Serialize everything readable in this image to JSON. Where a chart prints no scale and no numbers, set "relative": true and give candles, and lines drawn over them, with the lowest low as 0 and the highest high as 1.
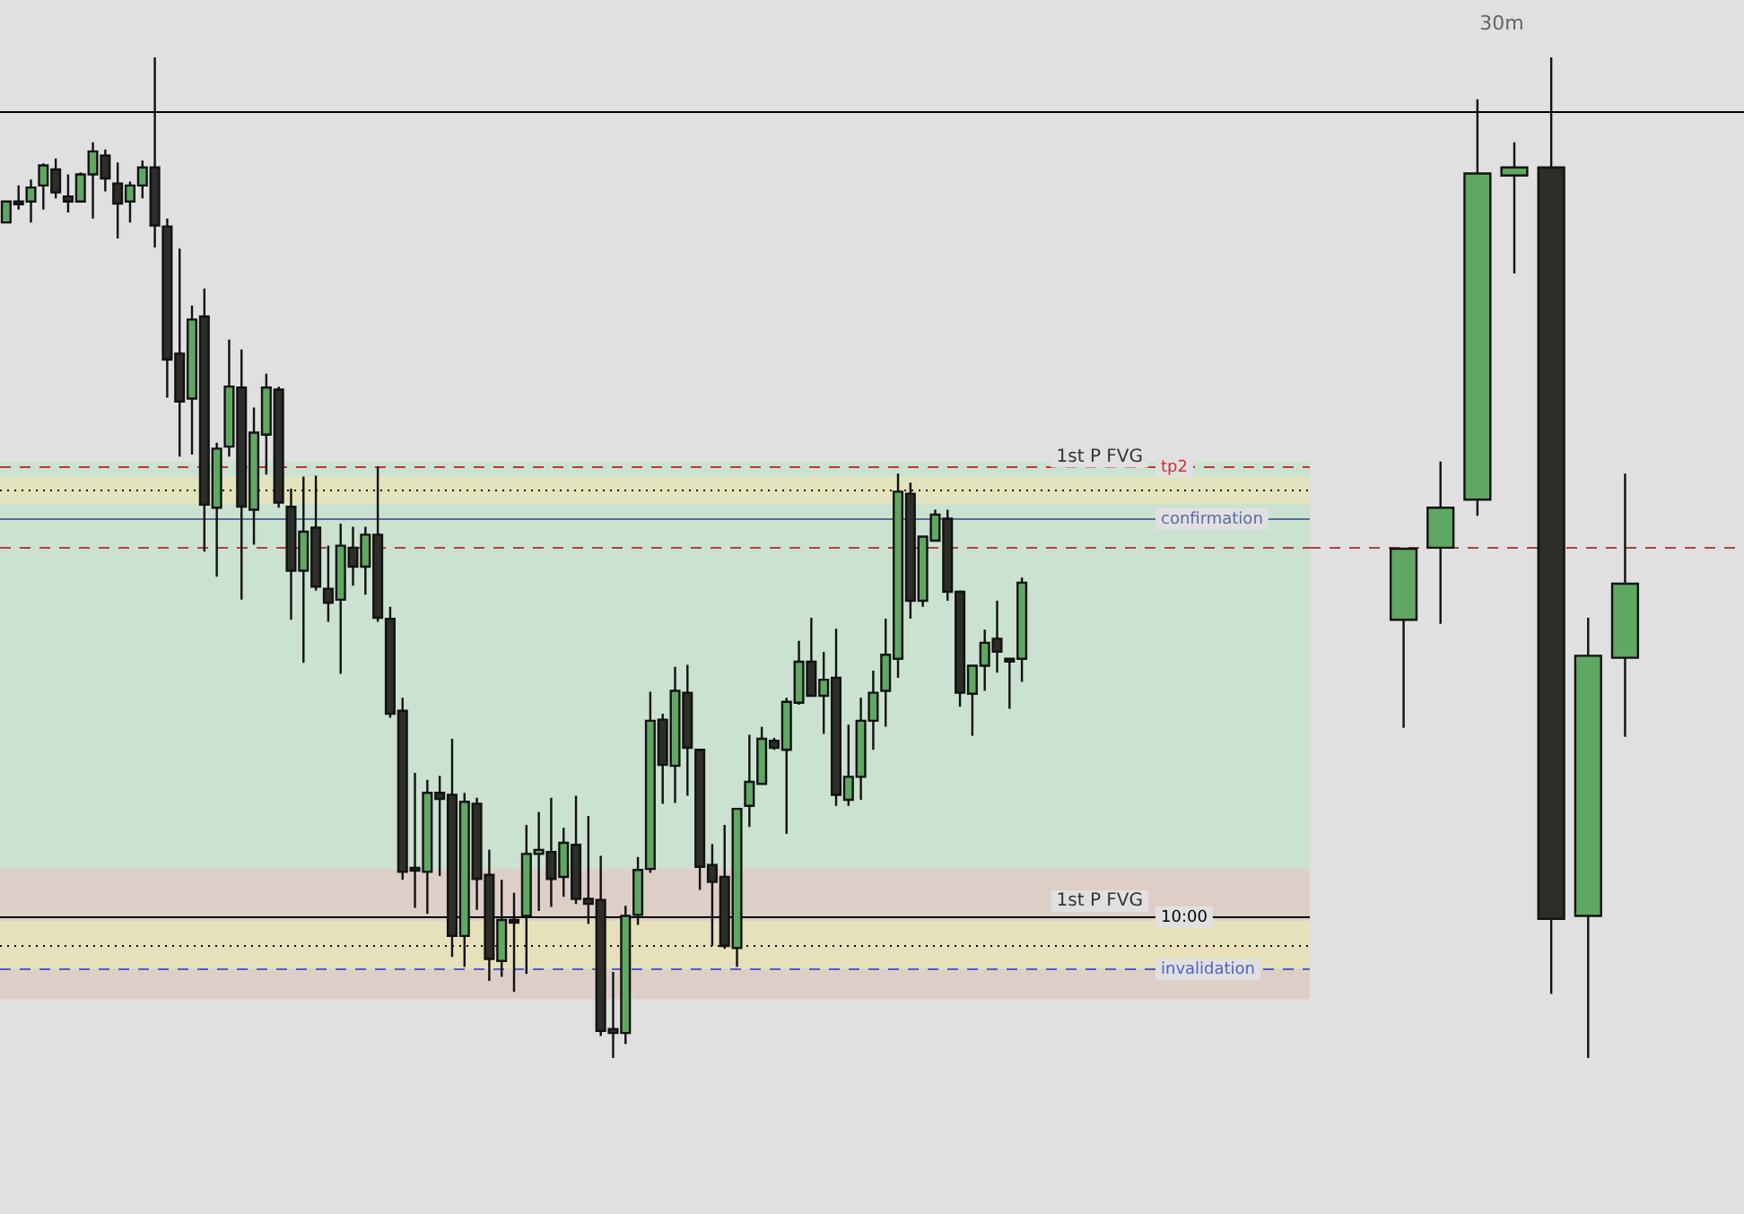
{
  "chart_data": [
    {
      "type": "candlestick",
      "relative": true,
      "categories": [
        null,
        null,
        null,
        null,
        null,
        null,
        null,
        null,
        null,
        null,
        null,
        null,
        null,
        null,
        null,
        null,
        null,
        null,
        null,
        null,
        null,
        null,
        null,
        null,
        null,
        null,
        null,
        null,
        null,
        null,
        null,
        null,
        null,
        null,
        null,
        null,
        null,
        null,
        null,
        null,
        null,
        null,
        null,
        null,
        null,
        null,
        null,
        null,
        null,
        null,
        null,
        null,
        null,
        null,
        null,
        null,
        null,
        null,
        null,
        null,
        null,
        null,
        null,
        null,
        null,
        null,
        null,
        null,
        null,
        null,
        null,
        null,
        null,
        null,
        null,
        null,
        null,
        null,
        null,
        null,
        null,
        null,
        null
      ],
      "ohlc": [
        [
          0.835,
          0.856,
          0.835,
          0.856
        ],
        [
          0.856,
          0.872,
          0.848,
          0.856
        ],
        [
          0.856,
          0.878,
          0.835,
          0.87
        ],
        [
          0.872,
          0.894,
          0.848,
          0.892
        ],
        [
          0.888,
          0.899,
          0.859,
          0.865
        ],
        [
          0.861,
          0.883,
          0.845,
          0.856
        ],
        [
          0.856,
          0.885,
          0.856,
          0.883
        ],
        [
          0.883,
          0.915,
          0.839,
          0.906
        ],
        [
          0.902,
          0.908,
          0.866,
          0.879
        ],
        [
          0.874,
          0.895,
          0.819,
          0.854
        ],
        [
          0.856,
          0.876,
          0.835,
          0.872
        ],
        [
          0.872,
          0.897,
          0.859,
          0.89
        ],
        [
          0.89,
          1,
          0.81,
          0.832
        ],
        [
          0.831,
          0.839,
          0.66,
          0.698
        ],
        [
          0.704,
          0.809,
          0.601,
          0.656
        ],
        [
          0.659,
          0.752,
          0.603,
          0.738
        ],
        [
          0.741,
          0.769,
          0.506,
          0.553
        ],
        [
          0.55,
          0.615,
          0.481,
          0.609
        ],
        [
          0.611,
          0.718,
          0.601,
          0.671
        ],
        [
          0.67,
          0.708,
          0.458,
          0.551
        ],
        [
          0.548,
          0.65,
          0.513,
          0.625
        ],
        [
          0.623,
          0.684,
          0.583,
          0.67
        ],
        [
          0.668,
          0.671,
          0.55,
          0.555
        ],
        [
          0.551,
          0.569,
          0.438,
          0.487
        ],
        [
          0.487,
          0.581,
          0.395,
          0.526
        ],
        [
          0.53,
          0.582,
          0.467,
          0.471
        ],
        [
          0.469,
          0.512,
          0.436,
          0.455
        ],
        [
          0.458,
          0.534,
          0.384,
          0.512
        ],
        [
          0.51,
          0.531,
          0.472,
          0.491
        ],
        [
          0.491,
          0.531,
          0.463,
          0.523
        ],
        [
          0.523,
          0.591,
          0.436,
          0.44
        ],
        [
          0.439,
          0.451,
          0.34,
          0.344
        ],
        [
          0.347,
          0.36,
          0.178,
          0.186
        ],
        [
          0.19,
          0.285,
          0.15,
          0.19
        ],
        [
          0.186,
          0.278,
          0.144,
          0.265
        ],
        [
          0.265,
          0.282,
          0.182,
          0.259
        ],
        [
          0.263,
          0.319,
          0.101,
          0.122
        ],
        [
          0.122,
          0.265,
          0.091,
          0.256
        ],
        [
          0.254,
          0.26,
          0.148,
          0.179
        ],
        [
          0.183,
          0.208,
          0.077,
          0.099
        ],
        [
          0.097,
          0.178,
          0.081,
          0.138
        ],
        [
          0.138,
          0.165,
          0.066,
          0.138
        ],
        [
          0.142,
          0.233,
          0.084,
          0.204
        ],
        [
          0.204,
          0.246,
          0.147,
          0.208
        ],
        [
          0.206,
          0.26,
          0.151,
          0.179
        ],
        [
          0.181,
          0.23,
          0.161,
          0.215
        ],
        [
          0.213,
          0.262,
          0.154,
          0.159
        ],
        [
          0.159,
          0.242,
          0.134,
          0.154
        ],
        [
          0.158,
          0.202,
          0.022,
          0.027
        ],
        [
          0.029,
          0.086,
          0,
          0.025
        ],
        [
          0.025,
          0.152,
          0.014,
          0.142
        ],
        [
          0.143,
          0.201,
          0.133,
          0.188
        ],
        [
          0.189,
          0.366,
          0.185,
          0.337
        ],
        [
          0.338,
          0.344,
          0.254,
          0.293
        ],
        [
          0.292,
          0.391,
          0.255,
          0.367
        ],
        [
          0.365,
          0.393,
          0.262,
          0.31
        ],
        [
          0.308,
          0.308,
          0.168,
          0.191
        ],
        [
          0.193,
          0.214,
          0.112,
          0.176
        ],
        [
          0.181,
          0.233,
          0.109,
          0.112
        ],
        [
          0.11,
          0.249,
          0.091,
          0.249
        ],
        [
          0.252,
          0.323,
          0.231,
          0.276
        ],
        [
          0.274,
          0.331,
          0.274,
          0.319
        ],
        [
          0.317,
          0.32,
          0.308,
          0.31
        ],
        [
          0.308,
          0.36,
          0.224,
          0.356
        ],
        [
          0.355,
          0.417,
          0.353,
          0.396
        ],
        [
          0.396,
          0.44,
          0.362,
          0.362
        ],
        [
          0.362,
          0.406,
          0.324,
          0.378
        ],
        [
          0.38,
          0.429,
          0.252,
          0.263
        ],
        [
          0.258,
          0.333,
          0.252,
          0.281
        ],
        [
          0.281,
          0.36,
          0.258,
          0.337
        ],
        [
          0.337,
          0.387,
          0.308,
          0.365
        ],
        [
          0.367,
          0.439,
          0.331,
          0.403
        ],
        [
          0.399,
          0.584,
          0.38,
          0.566
        ],
        [
          0.564,
          0.575,
          0.439,
          0.457
        ],
        [
          0.457,
          0.521,
          0.451,
          0.521
        ],
        [
          0.517,
          0.548,
          0.517,
          0.543
        ],
        [
          0.539,
          0.548,
          0.457,
          0.466
        ],
        [
          0.466,
          0.467,
          0.351,
          0.365
        ],
        [
          0.364,
          0.392,
          0.322,
          0.392
        ],
        [
          0.392,
          0.428,
          0.367,
          0.415
        ],
        [
          0.419,
          0.457,
          0.385,
          0.406
        ],
        [
          0.399,
          0.399,
          0.349,
          0.399
        ],
        [
          0.399,
          0.48,
          0.376,
          0.475
        ]
      ],
      "colors": [
        "#5fa862",
        "#2c2e27",
        "#5fa862",
        "#5fa862",
        "#2c2e27",
        "#2c2e27",
        "#5fa862",
        "#5fa862",
        "#2c2e27",
        "#2c2e27",
        "#5fa862",
        "#5fa862",
        "#2c2e27",
        "#2c2e27",
        "#2c2e27",
        "#5fa862",
        "#2c2e27",
        "#5fa862",
        "#5fa862",
        "#2c2e27",
        "#5fa862",
        "#5fa862",
        "#2c2e27",
        "#2c2e27",
        "#5fa862",
        "#2c2e27",
        "#2c2e27",
        "#5fa862",
        "#2c2e27",
        "#5fa862",
        "#2c2e27",
        "#2c2e27",
        "#2c2e27",
        "#2c2e27",
        "#5fa862",
        "#2c2e27",
        "#2c2e27",
        "#5fa862",
        "#2c2e27",
        "#2c2e27",
        "#5fa862",
        "#2c2e27",
        "#5fa862",
        "#5fa862",
        "#2c2e27",
        "#5fa862",
        "#2c2e27",
        "#2c2e27",
        "#2c2e27",
        "#2c2e27",
        "#5fa862",
        "#5fa862",
        "#5fa862",
        "#2c2e27",
        "#5fa862",
        "#2c2e27",
        "#2c2e27",
        "#2c2e27",
        "#2c2e27",
        "#5fa862",
        "#5fa862",
        "#5fa862",
        "#2c2e27",
        "#5fa862",
        "#5fa862",
        "#2c2e27",
        "#5fa862",
        "#2c2e27",
        "#5fa862",
        "#5fa862",
        "#5fa862",
        "#5fa862",
        "#5fa862",
        "#2c2e27",
        "#5fa862",
        "#5fa862",
        "#2c2e27",
        "#2c2e27",
        "#5fa862",
        "#5fa862",
        "#2c2e27",
        "#2c2e27",
        "#5fa862"
      ],
      "bands": [
        {
          "axis": "y",
          "from": 0.189,
          "to": 0.596,
          "color": "#c6e2cc"
        },
        {
          "axis": "y",
          "from": 0.059,
          "to": 0.189,
          "color": "#dccac2"
        },
        {
          "axis": "y",
          "from": 0.554,
          "to": 0.581,
          "label": "1st P FVG",
          "color": "#e8e4b8"
        },
        {
          "axis": "y",
          "from": 0.089,
          "to": 0.137,
          "label": "1st P FVG",
          "color": "#e8e4b8"
        }
      ],
      "ref_lines": [
        {
          "axis": "y",
          "value": 0.946,
          "color": "#000000",
          "line_style": "solid"
        },
        {
          "axis": "y",
          "value": 0.591,
          "label": "tp2",
          "color": "#c83232",
          "line_style": "dashed"
        },
        {
          "axis": "y",
          "value": 0.568,
          "color": "#000000",
          "line_style": "dotted"
        },
        {
          "axis": "y",
          "value": 0.539,
          "label": "confirmation",
          "color": "#5a6aa8",
          "line_style": "solid"
        },
        {
          "axis": "y",
          "value": 0.51,
          "color": "#b04040",
          "line_style": "dashed"
        },
        {
          "axis": "y",
          "value": 0.142,
          "label": "10:00",
          "color": "#000000",
          "line_style": "solid"
        },
        {
          "axis": "y",
          "value": 0.113,
          "color": "#000000",
          "line_style": "dotted"
        },
        {
          "axis": "y",
          "value": 0.09,
          "label": "invalidation",
          "color": "#5060c0",
          "line_style": "dashed"
        }
      ]
    },
    {
      "type": "candlestick",
      "title": "30m",
      "relative": true,
      "categories": [
        null,
        null,
        null,
        null,
        null,
        null,
        null
      ],
      "ohlc": [
        [
          0.438,
          0.509,
          0.33,
          0.509
        ],
        [
          0.51,
          0.596,
          0.434,
          0.55
        ],
        [
          0.558,
          0.958,
          0.542,
          0.884
        ],
        [
          0.882,
          0.915,
          0.784,
          0.89
        ],
        [
          0.89,
          1,
          0.064,
          0.139
        ],
        [
          0.142,
          0.44,
          0,
          0.402
        ],
        [
          0.4,
          0.584,
          0.321,
          0.474
        ]
      ],
      "colors": [
        "#5fa862",
        "#5fa862",
        "#5fa862",
        "#5fa862",
        "#2c2e27",
        "#5fa862",
        "#5fa862"
      ],
      "ref_lines": [
        {
          "axis": "y",
          "value": 0.946,
          "color": "#000000",
          "line_style": "solid"
        },
        {
          "axis": "y",
          "value": 0.51,
          "color": "#b04040",
          "line_style": "dashed"
        }
      ]
    }
  ]
}
